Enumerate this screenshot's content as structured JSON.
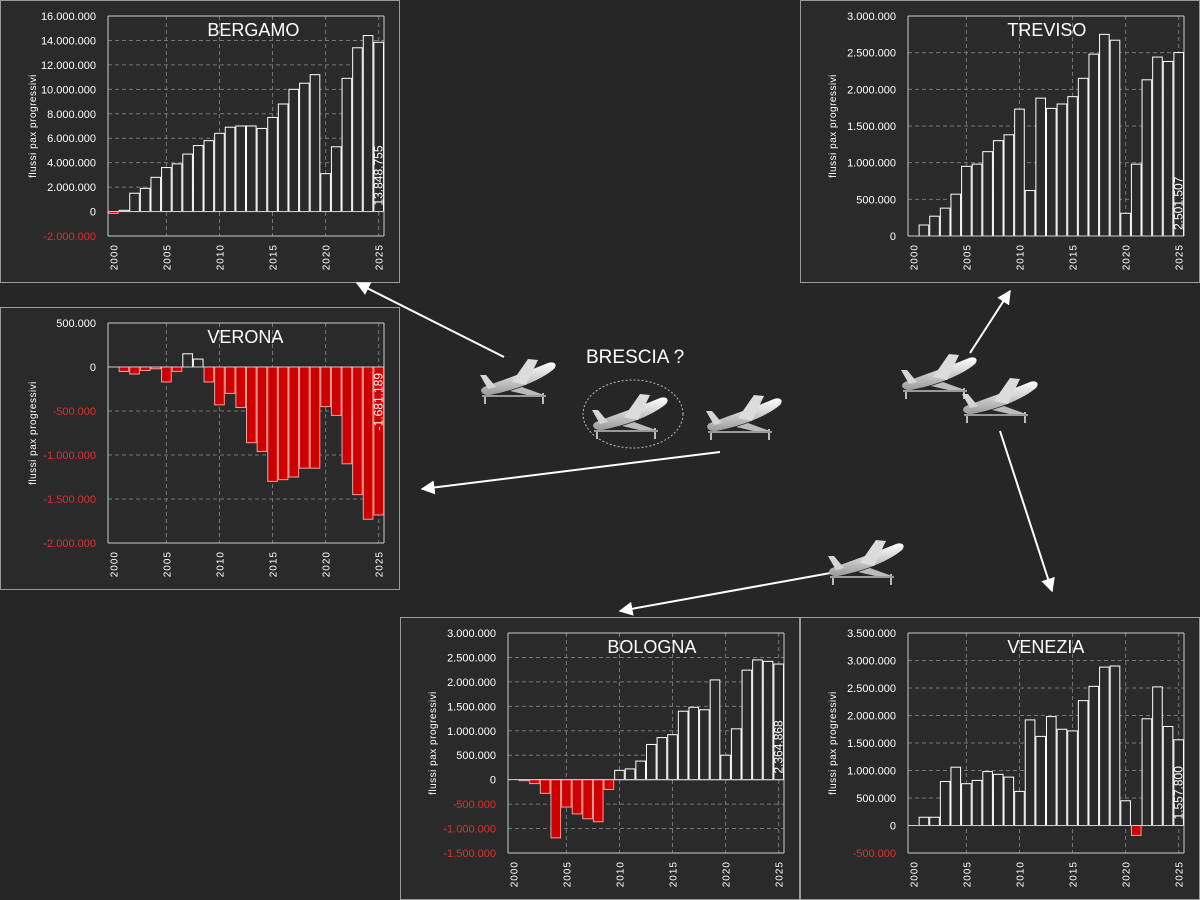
{
  "center": {
    "title": "BRESCIA ?"
  },
  "chart_data": [
    {
      "id": "bergamo",
      "type": "bar",
      "title": "BERGAMO",
      "ylabel": "flussi pax progressivi",
      "ylim": [
        -2000000,
        16000000
      ],
      "ystep": 2000000,
      "yticks": [
        "-2.000.000",
        "0",
        "2.000.000",
        "4.000.000",
        "6.000.000",
        "8.000.000",
        "10.000.000",
        "12.000.000",
        "14.000.000",
        "16.000.000"
      ],
      "x": [
        2000,
        2001,
        2002,
        2003,
        2004,
        2005,
        2006,
        2007,
        2008,
        2009,
        2010,
        2011,
        2012,
        2013,
        2014,
        2015,
        2016,
        2017,
        2018,
        2019,
        2020,
        2021,
        2022,
        2023,
        2024,
        2025
      ],
      "xticks": [
        "2000",
        "2005",
        "2010",
        "2015",
        "2020",
        "2025"
      ],
      "values": [
        -150000,
        100000,
        1500000,
        1900000,
        2800000,
        3600000,
        3900000,
        4700000,
        5400000,
        5800000,
        6400000,
        6900000,
        7000000,
        7000000,
        6800000,
        7700000,
        8800000,
        10000000,
        10500000,
        11200000,
        3100000,
        5300000,
        10900000,
        13400000,
        14400000,
        13848755
      ],
      "annotation": "13.848.755",
      "grid": true
    },
    {
      "id": "treviso",
      "type": "bar",
      "title": "TREVISO",
      "ylabel": "flussi pax progressivi",
      "ylim": [
        0,
        3000000
      ],
      "ystep": 500000,
      "yticks": [
        "0",
        "500.000",
        "1.000.000",
        "1.500.000",
        "2.000.000",
        "2.500.000",
        "3.000.000"
      ],
      "x": [
        2000,
        2001,
        2002,
        2003,
        2004,
        2005,
        2006,
        2007,
        2008,
        2009,
        2010,
        2011,
        2012,
        2013,
        2014,
        2015,
        2016,
        2017,
        2018,
        2019,
        2020,
        2021,
        2022,
        2023,
        2024,
        2025
      ],
      "xticks": [
        "2000",
        "2005",
        "2010",
        "2015",
        "2020",
        "2025"
      ],
      "values": [
        0,
        150000,
        270000,
        380000,
        570000,
        950000,
        980000,
        1150000,
        1300000,
        1380000,
        1730000,
        620000,
        1880000,
        1740000,
        1800000,
        1900000,
        2150000,
        2480000,
        2750000,
        2670000,
        310000,
        980000,
        2130000,
        2440000,
        2380000,
        2501507
      ],
      "annotation": "2.501.507",
      "grid": true
    },
    {
      "id": "verona",
      "type": "bar",
      "title": "VERONA",
      "ylabel": "flussi pax progressivi",
      "ylim": [
        -2000000,
        500000
      ],
      "ystep": 500000,
      "yticks": [
        "-2.000.000",
        "-1.500.000",
        "-1.000.000",
        "-500.000",
        "0",
        "500.000"
      ],
      "x": [
        2000,
        2001,
        2002,
        2003,
        2004,
        2005,
        2006,
        2007,
        2008,
        2009,
        2010,
        2011,
        2012,
        2013,
        2014,
        2015,
        2016,
        2017,
        2018,
        2019,
        2020,
        2021,
        2022,
        2023,
        2024,
        2025
      ],
      "xticks": [
        "2000",
        "2005",
        "2010",
        "2015",
        "2020",
        "2025"
      ],
      "values": [
        0,
        -50000,
        -80000,
        -40000,
        -20000,
        -170000,
        -50000,
        150000,
        90000,
        -170000,
        -430000,
        -300000,
        -460000,
        -860000,
        -960000,
        -1300000,
        -1280000,
        -1250000,
        -1150000,
        -1150000,
        -450000,
        -550000,
        -1100000,
        -1450000,
        -1730000,
        -1681189
      ],
      "annotation": "-1.681.189",
      "grid": true
    },
    {
      "id": "bologna",
      "type": "bar",
      "title": "BOLOGNA",
      "ylabel": "flussi pax progressivi",
      "ylim": [
        -1500000,
        3000000
      ],
      "ystep": 500000,
      "yticks": [
        "-1.500.000",
        "-1.000.000",
        "-500.000",
        "0",
        "500.000",
        "1.000.000",
        "1.500.000",
        "2.000.000",
        "2.500.000",
        "3.000.000"
      ],
      "x": [
        2000,
        2001,
        2002,
        2003,
        2004,
        2005,
        2006,
        2007,
        2008,
        2009,
        2010,
        2011,
        2012,
        2013,
        2014,
        2015,
        2016,
        2017,
        2018,
        2019,
        2020,
        2021,
        2022,
        2023,
        2024,
        2025
      ],
      "xticks": [
        "2000",
        "2005",
        "2010",
        "2015",
        "2020",
        "2025"
      ],
      "values": [
        0,
        -20000,
        -80000,
        -280000,
        -1190000,
        -560000,
        -700000,
        -800000,
        -860000,
        -200000,
        190000,
        220000,
        380000,
        720000,
        860000,
        920000,
        1400000,
        1480000,
        1430000,
        2040000,
        500000,
        1040000,
        2240000,
        2450000,
        2420000,
        2364868
      ],
      "annotation": "2.364.868",
      "grid": true
    },
    {
      "id": "venezia",
      "type": "bar",
      "title": "VENEZIA",
      "ylabel": "flussi pax progressivi",
      "ylim": [
        -500000,
        3500000
      ],
      "ystep": 500000,
      "yticks": [
        "-500.000",
        "0",
        "500.000",
        "1.000.000",
        "1.500.000",
        "2.000.000",
        "2.500.000",
        "3.000.000",
        "3.500.000"
      ],
      "x": [
        2000,
        2001,
        2002,
        2003,
        2004,
        2005,
        2006,
        2007,
        2008,
        2009,
        2010,
        2011,
        2012,
        2013,
        2014,
        2015,
        2016,
        2017,
        2018,
        2019,
        2020,
        2021,
        2022,
        2023,
        2024,
        2025
      ],
      "xticks": [
        "2000",
        "2005",
        "2010",
        "2015",
        "2020",
        "2025"
      ],
      "values": [
        0,
        150000,
        150000,
        800000,
        1060000,
        760000,
        820000,
        980000,
        930000,
        880000,
        620000,
        1920000,
        1620000,
        1980000,
        1750000,
        1720000,
        2270000,
        2530000,
        2880000,
        2900000,
        450000,
        -180000,
        1940000,
        2520000,
        1800000,
        1557800
      ],
      "annotation": "1.557.800",
      "grid": true
    }
  ],
  "colors": {
    "background": "#262626",
    "panel": "#2a2a2a",
    "bar": "#2a2a2a",
    "negative": "#cc0000",
    "grid": "#777777",
    "border": "#9a9a9a"
  },
  "icons": [
    "airplane-icon"
  ]
}
